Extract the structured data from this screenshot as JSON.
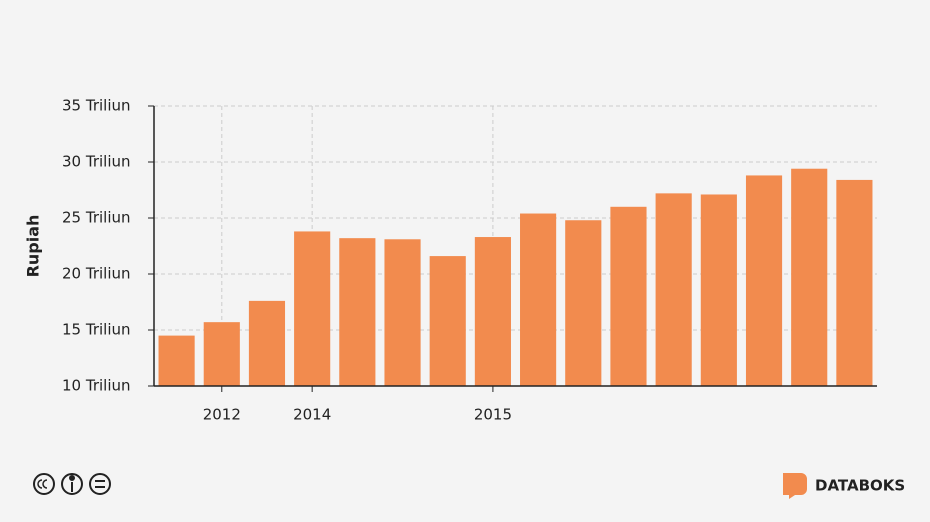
{
  "chart_data": {
    "type": "bar",
    "y_label": "Rupiah",
    "categories": [
      null,
      "2012",
      null,
      "2014",
      null,
      null,
      null,
      "2015",
      null,
      null,
      null,
      null,
      null,
      null,
      null,
      null
    ],
    "values": [
      14.5,
      15.7,
      17.6,
      23.8,
      23.2,
      23.1,
      21.6,
      23.3,
      25.4,
      24.8,
      26.0,
      27.2,
      27.1,
      28.8,
      29.4,
      28.4
    ],
    "color": "#f28b4e",
    "ylim": [
      10,
      35
    ],
    "yticks": [
      {
        "value": 10,
        "label": "10 Triliun"
      },
      {
        "value": 15,
        "label": "15 Triliun"
      },
      {
        "value": 20,
        "label": "20 Triliun"
      },
      {
        "value": 25,
        "label": "25 Triliun"
      },
      {
        "value": 30,
        "label": "30 Triliun"
      },
      {
        "value": 35,
        "label": "35 Triliun"
      }
    ],
    "grid": true
  },
  "footer": {
    "brand": "DATABOKS"
  }
}
